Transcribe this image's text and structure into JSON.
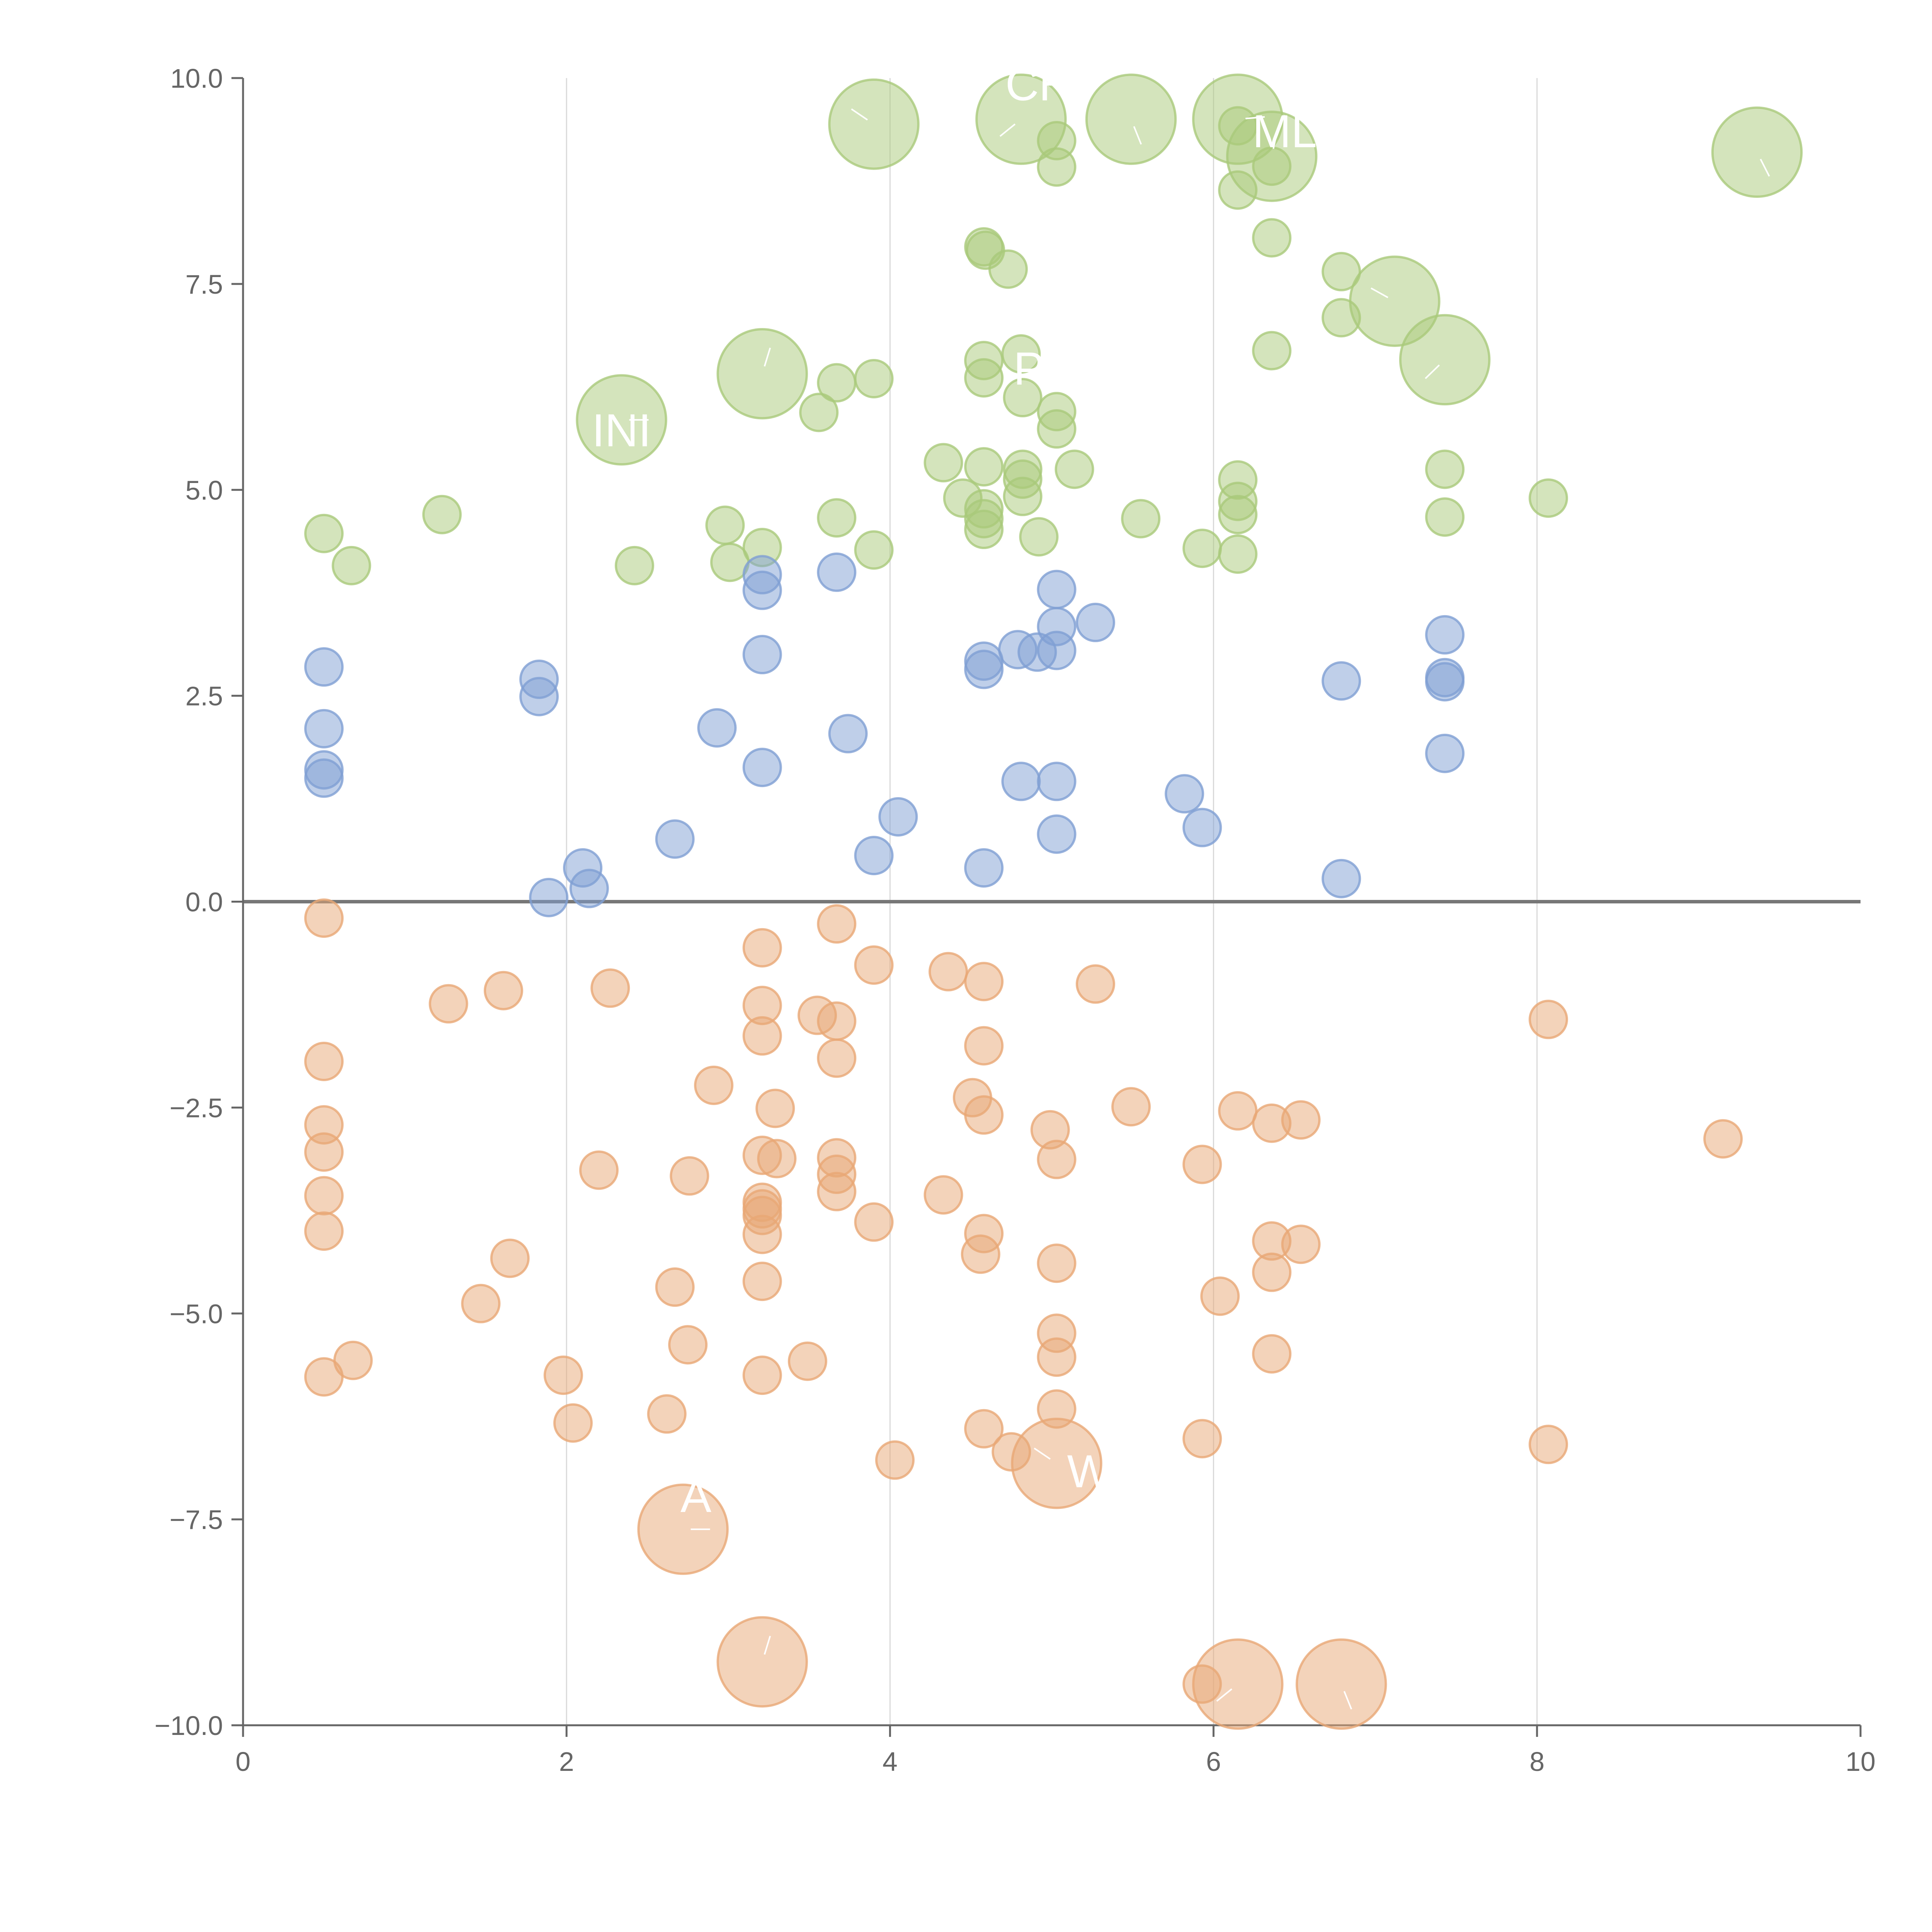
{
  "chart_data": {
    "type": "scatter",
    "variant": "bubble",
    "title": "",
    "xlabel": "",
    "ylabel": "",
    "xlim": [
      0,
      10
    ],
    "ylim": [
      -10,
      10
    ],
    "x_ticks": [
      0,
      2,
      4,
      6,
      8,
      10
    ],
    "x_tick_labels": [
      "0",
      "2",
      "4",
      "6",
      "8",
      "10"
    ],
    "y_ticks": [
      10,
      7.5,
      5,
      2.5,
      0,
      -2.5,
      -5,
      -7.5,
      -10
    ],
    "y_tick_labels": [
      "10.0",
      "7.5",
      "5.0",
      "2.5",
      "0.0",
      "−2.5",
      "−5.0",
      "−7.5",
      "−10.0"
    ],
    "vertical_gridlines_at": [
      2,
      4,
      6,
      8
    ],
    "reference_line_y": 0,
    "legend": "none",
    "series": [
      {
        "name": "green",
        "color": "#a9c97a",
        "size_scale": "small=1, large=2.4",
        "points": [
          {
            "x": 0.5,
            "y": 4.47,
            "s": 1
          },
          {
            "x": 0.67,
            "y": 4.08,
            "s": 1
          },
          {
            "x": 1.23,
            "y": 4.7,
            "s": 1
          },
          {
            "x": 2.42,
            "y": 4.08,
            "s": 1
          },
          {
            "x": 2.98,
            "y": 4.57,
            "s": 1
          },
          {
            "x": 3.01,
            "y": 4.12,
            "s": 1
          },
          {
            "x": 3.21,
            "y": 4.3,
            "s": 1
          },
          {
            "x": 3.56,
            "y": 5.94,
            "s": 1
          },
          {
            "x": 3.67,
            "y": 6.3,
            "s": 1
          },
          {
            "x": 3.67,
            "y": 4.66,
            "s": 1
          },
          {
            "x": 3.9,
            "y": 6.35,
            "s": 1
          },
          {
            "x": 3.9,
            "y": 4.27,
            "s": 1
          },
          {
            "x": 4.33,
            "y": 5.33,
            "s": 1
          },
          {
            "x": 4.45,
            "y": 4.9,
            "s": 1
          },
          {
            "x": 4.58,
            "y": 7.95,
            "s": 1
          },
          {
            "x": 4.59,
            "y": 7.91,
            "s": 1
          },
          {
            "x": 4.58,
            "y": 6.57,
            "s": 1
          },
          {
            "x": 4.58,
            "y": 6.36,
            "s": 1
          },
          {
            "x": 4.58,
            "y": 5.28,
            "s": 1
          },
          {
            "x": 4.58,
            "y": 4.77,
            "s": 1
          },
          {
            "x": 4.58,
            "y": 4.65,
            "s": 1
          },
          {
            "x": 4.58,
            "y": 4.52,
            "s": 1
          },
          {
            "x": 4.73,
            "y": 7.68,
            "s": 1
          },
          {
            "x": 4.81,
            "y": 6.65,
            "s": 1
          },
          {
            "x": 4.82,
            "y": 6.12,
            "s": 1
          },
          {
            "x": 4.82,
            "y": 5.25,
            "s": 1
          },
          {
            "x": 4.82,
            "y": 5.13,
            "s": 1
          },
          {
            "x": 4.82,
            "y": 4.92,
            "s": 1
          },
          {
            "x": 4.92,
            "y": 4.43,
            "s": 1
          },
          {
            "x": 5.03,
            "y": 9.24,
            "s": 1
          },
          {
            "x": 5.03,
            "y": 8.92,
            "s": 1
          },
          {
            "x": 5.03,
            "y": 5.95,
            "s": 1
          },
          {
            "x": 5.03,
            "y": 5.74,
            "s": 1
          },
          {
            "x": 5.14,
            "y": 5.25,
            "s": 1
          },
          {
            "x": 5.55,
            "y": 4.65,
            "s": 1
          },
          {
            "x": 5.93,
            "y": 4.29,
            "s": 1
          },
          {
            "x": 6.15,
            "y": 9.42,
            "s": 1
          },
          {
            "x": 6.15,
            "y": 8.64,
            "s": 1
          },
          {
            "x": 6.15,
            "y": 5.12,
            "s": 1
          },
          {
            "x": 6.15,
            "y": 4.86,
            "s": 1
          },
          {
            "x": 6.15,
            "y": 4.7,
            "s": 1
          },
          {
            "x": 6.15,
            "y": 4.22,
            "s": 1
          },
          {
            "x": 6.36,
            "y": 8.93,
            "s": 1
          },
          {
            "x": 6.36,
            "y": 8.06,
            "s": 1
          },
          {
            "x": 6.36,
            "y": 6.69,
            "s": 1
          },
          {
            "x": 6.79,
            "y": 7.65,
            "s": 1
          },
          {
            "x": 6.79,
            "y": 7.09,
            "s": 1
          },
          {
            "x": 7.43,
            "y": 5.25,
            "s": 1
          },
          {
            "x": 7.43,
            "y": 4.67,
            "s": 1
          },
          {
            "x": 8.07,
            "y": 4.9,
            "s": 1
          },
          {
            "x": 2.34,
            "y": 5.85,
            "s": 2.4
          },
          {
            "x": 3.21,
            "y": 6.41,
            "s": 2.4
          },
          {
            "x": 3.9,
            "y": 9.44,
            "s": 2.4
          },
          {
            "x": 4.81,
            "y": 9.5,
            "s": 2.4
          },
          {
            "x": 5.49,
            "y": 9.5,
            "s": 2.4
          },
          {
            "x": 6.15,
            "y": 9.5,
            "s": 2.4
          },
          {
            "x": 6.36,
            "y": 9.05,
            "s": 2.4
          },
          {
            "x": 7.12,
            "y": 7.29,
            "s": 2.4
          },
          {
            "x": 7.43,
            "y": 6.58,
            "s": 2.4
          },
          {
            "x": 9.36,
            "y": 9.1,
            "s": 2.4
          }
        ]
      },
      {
        "name": "blue",
        "color": "#7f9fd3",
        "size_scale": "small=1",
        "points": [
          {
            "x": 0.5,
            "y": 2.85,
            "s": 1
          },
          {
            "x": 0.5,
            "y": 2.1,
            "s": 1
          },
          {
            "x": 0.5,
            "y": 1.6,
            "s": 1
          },
          {
            "x": 0.5,
            "y": 1.5,
            "s": 1
          },
          {
            "x": 1.83,
            "y": 2.7,
            "s": 1
          },
          {
            "x": 1.83,
            "y": 2.49,
            "s": 1
          },
          {
            "x": 1.89,
            "y": 0.05,
            "s": 1
          },
          {
            "x": 2.1,
            "y": 0.41,
            "s": 1
          },
          {
            "x": 2.14,
            "y": 0.16,
            "s": 1
          },
          {
            "x": 2.67,
            "y": 0.76,
            "s": 1
          },
          {
            "x": 2.93,
            "y": 2.11,
            "s": 1
          },
          {
            "x": 3.21,
            "y": 3.97,
            "s": 1
          },
          {
            "x": 3.21,
            "y": 3.78,
            "s": 1
          },
          {
            "x": 3.21,
            "y": 3.0,
            "s": 1
          },
          {
            "x": 3.21,
            "y": 1.63,
            "s": 1
          },
          {
            "x": 3.67,
            "y": 4.0,
            "s": 1
          },
          {
            "x": 3.74,
            "y": 2.04,
            "s": 1
          },
          {
            "x": 3.9,
            "y": 0.56,
            "s": 1
          },
          {
            "x": 4.05,
            "y": 1.03,
            "s": 1
          },
          {
            "x": 4.58,
            "y": 2.92,
            "s": 1
          },
          {
            "x": 4.58,
            "y": 2.82,
            "s": 1
          },
          {
            "x": 4.58,
            "y": 0.41,
            "s": 1
          },
          {
            "x": 4.79,
            "y": 3.06,
            "s": 1
          },
          {
            "x": 4.81,
            "y": 1.46,
            "s": 1
          },
          {
            "x": 4.91,
            "y": 3.03,
            "s": 1
          },
          {
            "x": 5.03,
            "y": 3.79,
            "s": 1
          },
          {
            "x": 5.03,
            "y": 3.34,
            "s": 1
          },
          {
            "x": 5.03,
            "y": 3.05,
            "s": 1
          },
          {
            "x": 5.03,
            "y": 1.46,
            "s": 1
          },
          {
            "x": 5.03,
            "y": 0.82,
            "s": 1
          },
          {
            "x": 5.27,
            "y": 3.39,
            "s": 1
          },
          {
            "x": 5.82,
            "y": 1.31,
            "s": 1
          },
          {
            "x": 5.93,
            "y": 0.9,
            "s": 1
          },
          {
            "x": 6.79,
            "y": 2.68,
            "s": 1
          },
          {
            "x": 6.79,
            "y": 0.28,
            "s": 1
          },
          {
            "x": 7.43,
            "y": 3.24,
            "s": 1
          },
          {
            "x": 7.43,
            "y": 2.72,
            "s": 1
          },
          {
            "x": 7.43,
            "y": 2.67,
            "s": 1
          },
          {
            "x": 7.43,
            "y": 1.8,
            "s": 1
          }
        ]
      },
      {
        "name": "orange",
        "color": "#e8a876",
        "size_scale": "small=1, large=2.4",
        "points": [
          {
            "x": 0.5,
            "y": -0.2,
            "s": 1
          },
          {
            "x": 0.5,
            "y": -1.94,
            "s": 1
          },
          {
            "x": 0.5,
            "y": -2.71,
            "s": 1
          },
          {
            "x": 0.5,
            "y": -3.04,
            "s": 1
          },
          {
            "x": 0.5,
            "y": -3.57,
            "s": 1
          },
          {
            "x": 0.5,
            "y": -4.0,
            "s": 1
          },
          {
            "x": 0.5,
            "y": -5.77,
            "s": 1
          },
          {
            "x": 0.68,
            "y": -5.57,
            "s": 1
          },
          {
            "x": 1.27,
            "y": -1.24,
            "s": 1
          },
          {
            "x": 1.47,
            "y": -4.88,
            "s": 1
          },
          {
            "x": 1.61,
            "y": -1.08,
            "s": 1
          },
          {
            "x": 1.65,
            "y": -4.33,
            "s": 1
          },
          {
            "x": 1.98,
            "y": -5.75,
            "s": 1
          },
          {
            "x": 2.04,
            "y": -6.33,
            "s": 1
          },
          {
            "x": 2.2,
            "y": -3.26,
            "s": 1
          },
          {
            "x": 2.27,
            "y": -1.05,
            "s": 1
          },
          {
            "x": 2.62,
            "y": -6.22,
            "s": 1
          },
          {
            "x": 2.67,
            "y": -4.68,
            "s": 1
          },
          {
            "x": 2.75,
            "y": -5.38,
            "s": 1
          },
          {
            "x": 2.76,
            "y": -3.33,
            "s": 1
          },
          {
            "x": 2.91,
            "y": -2.23,
            "s": 1
          },
          {
            "x": 3.21,
            "y": -0.56,
            "s": 1
          },
          {
            "x": 3.21,
            "y": -1.26,
            "s": 1
          },
          {
            "x": 3.21,
            "y": -1.63,
            "s": 1
          },
          {
            "x": 3.21,
            "y": -3.08,
            "s": 1
          },
          {
            "x": 3.21,
            "y": -3.65,
            "s": 1
          },
          {
            "x": 3.21,
            "y": -3.73,
            "s": 1
          },
          {
            "x": 3.21,
            "y": -3.81,
            "s": 1
          },
          {
            "x": 3.21,
            "y": -4.04,
            "s": 1
          },
          {
            "x": 3.21,
            "y": -4.61,
            "s": 1
          },
          {
            "x": 3.21,
            "y": -5.75,
            "s": 1
          },
          {
            "x": 3.29,
            "y": -2.51,
            "s": 1
          },
          {
            "x": 3.3,
            "y": -3.12,
            "s": 1
          },
          {
            "x": 3.49,
            "y": -5.58,
            "s": 1
          },
          {
            "x": 3.55,
            "y": -1.38,
            "s": 1
          },
          {
            "x": 3.67,
            "y": -0.27,
            "s": 1
          },
          {
            "x": 3.67,
            "y": -1.45,
            "s": 1
          },
          {
            "x": 3.67,
            "y": -1.9,
            "s": 1
          },
          {
            "x": 3.67,
            "y": -3.11,
            "s": 1
          },
          {
            "x": 3.67,
            "y": -3.31,
            "s": 1
          },
          {
            "x": 3.67,
            "y": -3.52,
            "s": 1
          },
          {
            "x": 3.9,
            "y": -0.77,
            "s": 1
          },
          {
            "x": 3.9,
            "y": -3.89,
            "s": 1
          },
          {
            "x": 4.03,
            "y": -6.78,
            "s": 1
          },
          {
            "x": 4.33,
            "y": -3.56,
            "s": 1
          },
          {
            "x": 4.36,
            "y": -0.85,
            "s": 1
          },
          {
            "x": 4.51,
            "y": -2.38,
            "s": 1
          },
          {
            "x": 4.58,
            "y": -0.97,
            "s": 1
          },
          {
            "x": 4.58,
            "y": -1.75,
            "s": 1
          },
          {
            "x": 4.58,
            "y": -2.59,
            "s": 1
          },
          {
            "x": 4.58,
            "y": -4.03,
            "s": 1
          },
          {
            "x": 4.56,
            "y": -4.28,
            "s": 1
          },
          {
            "x": 4.58,
            "y": -6.4,
            "s": 1
          },
          {
            "x": 4.75,
            "y": -6.68,
            "s": 1
          },
          {
            "x": 4.99,
            "y": -2.77,
            "s": 1
          },
          {
            "x": 5.03,
            "y": -3.13,
            "s": 1
          },
          {
            "x": 5.03,
            "y": -4.39,
            "s": 1
          },
          {
            "x": 5.03,
            "y": -5.24,
            "s": 1
          },
          {
            "x": 5.03,
            "y": -5.53,
            "s": 1
          },
          {
            "x": 5.03,
            "y": -6.16,
            "s": 1
          },
          {
            "x": 5.27,
            "y": -1.0,
            "s": 1
          },
          {
            "x": 5.49,
            "y": -2.49,
            "s": 1
          },
          {
            "x": 5.93,
            "y": -3.19,
            "s": 1
          },
          {
            "x": 5.93,
            "y": -6.52,
            "s": 1
          },
          {
            "x": 5.93,
            "y": -9.5,
            "s": 1
          },
          {
            "x": 6.04,
            "y": -4.79,
            "s": 1
          },
          {
            "x": 6.15,
            "y": -2.54,
            "s": 1
          },
          {
            "x": 6.36,
            "y": -2.69,
            "s": 1
          },
          {
            "x": 6.36,
            "y": -4.12,
            "s": 1
          },
          {
            "x": 6.36,
            "y": -4.5,
            "s": 1
          },
          {
            "x": 6.36,
            "y": -5.49,
            "s": 1
          },
          {
            "x": 6.54,
            "y": -2.65,
            "s": 1
          },
          {
            "x": 6.54,
            "y": -4.16,
            "s": 1
          },
          {
            "x": 8.07,
            "y": -1.43,
            "s": 1
          },
          {
            "x": 8.07,
            "y": -6.59,
            "s": 1
          },
          {
            "x": 9.15,
            "y": -2.88,
            "s": 1
          },
          {
            "x": 2.72,
            "y": -7.62,
            "s": 2.4
          },
          {
            "x": 3.21,
            "y": -9.23,
            "s": 2.4
          },
          {
            "x": 5.03,
            "y": -6.82,
            "s": 2.4
          },
          {
            "x": 6.15,
            "y": -9.5,
            "s": 2.4
          },
          {
            "x": 6.79,
            "y": -9.5,
            "s": 2.4
          }
        ]
      }
    ],
    "annotations": [
      {
        "text": "CH",
        "x": 4.92,
        "y": 9.73
      },
      {
        "text": "ML",
        "x": 6.44,
        "y": 9.16
      },
      {
        "text": "INI",
        "x": 2.34,
        "y": 5.53
      },
      {
        "text": "P.",
        "x": 4.88,
        "y": 6.28
      },
      {
        "text": "W",
        "x": 5.23,
        "y": -7.11
      },
      {
        "text": "A",
        "x": 2.8,
        "y": -7.41
      }
    ]
  }
}
